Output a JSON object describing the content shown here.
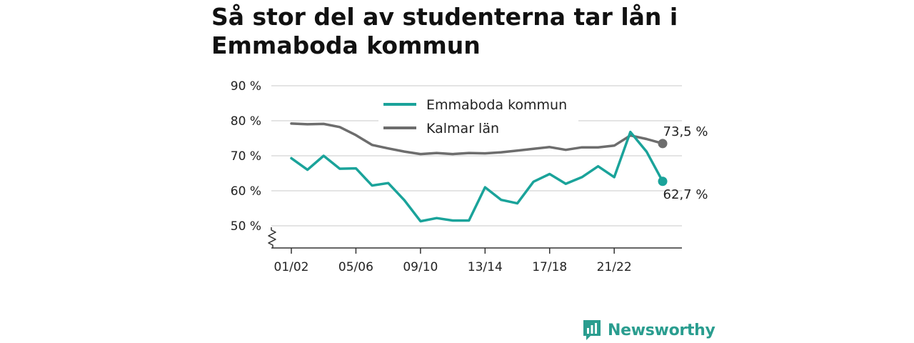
{
  "title": "Så stor del av studenterna tar lån i Emmaboda kommun",
  "brand": {
    "name": "Newsworthy",
    "icon": "newsworthy-logo-icon",
    "color": "#2a9d8f"
  },
  "chart_data": {
    "type": "line",
    "x": [
      "01/02",
      "02/03",
      "03/04",
      "04/05",
      "05/06",
      "06/07",
      "07/08",
      "08/09",
      "09/10",
      "10/11",
      "11/12",
      "12/13",
      "13/14",
      "14/15",
      "15/16",
      "16/17",
      "17/18",
      "18/19",
      "19/20",
      "20/21",
      "21/22",
      "22/23",
      "23/24",
      "24/25"
    ],
    "x_tick_labels": [
      "01/02",
      "05/06",
      "09/10",
      "13/14",
      "17/18",
      "21/22"
    ],
    "ylim": [
      45,
      92
    ],
    "y_ticks": [
      50,
      60,
      70,
      80,
      90
    ],
    "y_tick_labels": [
      "50 %",
      "60 %",
      "70 %",
      "80 %",
      "90 %"
    ],
    "y_axis_break": true,
    "grid": "horizontal",
    "legend": "top-center",
    "series": [
      {
        "name": "Emmaboda kommun",
        "color": "#1aa39a",
        "values": [
          69.3,
          66.0,
          70.0,
          66.3,
          66.4,
          61.5,
          62.2,
          57.3,
          51.3,
          52.2,
          51.5,
          51.5,
          61.0,
          57.4,
          56.4,
          62.6,
          64.8,
          62.0,
          63.9,
          67.0,
          63.9,
          76.8,
          71.2,
          62.7
        ],
        "end_label": "62,7 %"
      },
      {
        "name": "Kalmar län",
        "color": "#6d6d6d",
        "values": [
          79.2,
          79.0,
          79.1,
          78.2,
          75.9,
          73.1,
          72.1,
          71.2,
          70.5,
          70.8,
          70.5,
          70.8,
          70.7,
          71.0,
          71.5,
          72.0,
          72.5,
          71.7,
          72.4,
          72.4,
          72.9,
          75.8,
          74.8,
          73.5
        ],
        "end_label": "73,5 %"
      }
    ]
  }
}
